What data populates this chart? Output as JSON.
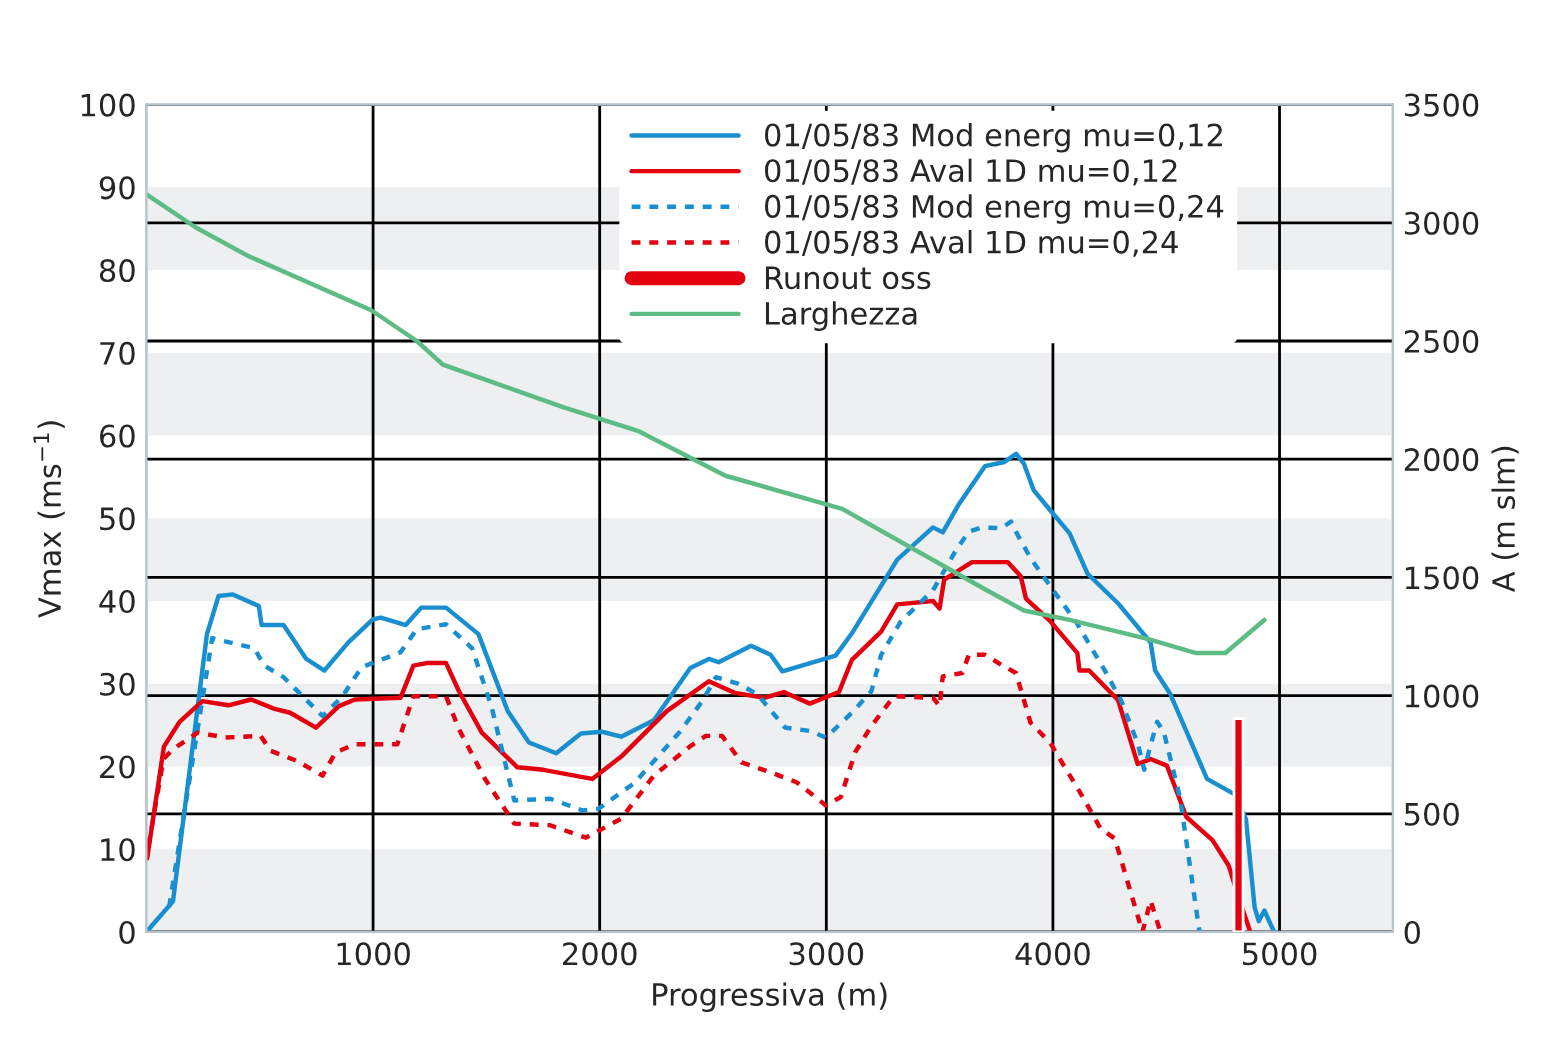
{
  "chart_data": {
    "type": "line",
    "xlabel": "Progressiva (m)",
    "ylabel": "Vmax (ms$^{−1}$)",
    "y2label": "A (m slm)",
    "xlim": [
      0,
      5500
    ],
    "xticks": [
      1000,
      2000,
      3000,
      4000,
      5000
    ],
    "ylim": [
      0,
      100
    ],
    "yticks": [
      0,
      10,
      20,
      30,
      40,
      50,
      60,
      70,
      80,
      90,
      100
    ],
    "y2lim": [
      0,
      3500
    ],
    "y2ticks": [
      0,
      500,
      1000,
      1500,
      2000,
      2500,
      3000,
      3500
    ],
    "grid": true,
    "legend": "top right",
    "bands": [
      {
        "axis": "y",
        "from": 0,
        "to": 10,
        "color": "#eeeff1"
      },
      {
        "axis": "y",
        "from": 20,
        "to": 30,
        "color": "#eeeff1"
      },
      {
        "axis": "y",
        "from": 40,
        "to": 50,
        "color": "#eeeff1"
      },
      {
        "axis": "y",
        "from": 60,
        "to": 70,
        "color": "#eeeff1"
      },
      {
        "axis": "y",
        "from": 80,
        "to": 90,
        "color": "#eeeff1"
      }
    ],
    "series": [
      {
        "name": "01/05/83 Mod energ mu=0,12",
        "color": "#1a8fd0",
        "line_style": "solid",
        "x": [
          0,
          117,
          267,
          318,
          381,
          496,
          508,
          605,
          705,
          785,
          891,
          1000,
          1034,
          1144,
          1212,
          1322,
          1465,
          1594,
          1688,
          1808,
          1917,
          2010,
          2095,
          2239,
          2400,
          2482,
          2525,
          2668,
          2754,
          2806,
          3041,
          3113,
          3313,
          3471,
          3514,
          3585,
          3700,
          3786,
          3837,
          3872,
          3915,
          3987,
          4073,
          4153,
          4288,
          4431,
          4451,
          4517,
          4680,
          4804,
          4852,
          4890,
          4908,
          4933,
          4976
        ],
        "values": [
          0,
          3.7,
          36,
          40.6,
          40.8,
          39.4,
          37.1,
          37.1,
          33,
          31.6,
          35,
          37.8,
          38,
          37.1,
          39.2,
          39.2,
          36,
          26.7,
          22.9,
          21.6,
          24,
          24.2,
          23.6,
          25.6,
          31.9,
          33,
          32.6,
          34.6,
          33.5,
          31.5,
          33.4,
          36.1,
          45,
          48.9,
          48.3,
          51.7,
          56.3,
          56.8,
          57.8,
          56.6,
          53.4,
          51,
          48.2,
          43.3,
          39.7,
          35,
          31.6,
          28.8,
          18.5,
          16.6,
          13.6,
          3,
          1.3,
          2.6,
          0
        ]
      },
      {
        "name": "01/05/83 Aval 1D mu=0,12",
        "color": "#e3000f",
        "line_style": "solid",
        "x": [
          3,
          77,
          146,
          247,
          361,
          462,
          562,
          634,
          748,
          849,
          920,
          1121,
          1178,
          1236,
          1322,
          1379,
          1480,
          1637,
          1752,
          1967,
          2095,
          2296,
          2482,
          2596,
          2726,
          2812,
          2927,
          3056,
          3113,
          3242,
          3313,
          3471,
          3500,
          3520,
          3643,
          3801,
          3858,
          3881,
          3987,
          4108,
          4117,
          4160,
          4288,
          4374,
          4431,
          4503,
          4589,
          4704,
          4776,
          4819,
          4871
        ],
        "values": [
          8.9,
          22.4,
          25.4,
          27.9,
          27.4,
          28.1,
          27,
          26.5,
          24.7,
          27.3,
          28.1,
          28.3,
          32.2,
          32.5,
          32.5,
          29.1,
          24.1,
          19.9,
          19.6,
          18.5,
          21.2,
          26.7,
          30.3,
          28.9,
          28.3,
          29,
          27.6,
          29,
          32.9,
          36.3,
          39.6,
          40,
          39.1,
          42.6,
          44.7,
          44.7,
          43,
          40.3,
          37.6,
          33.7,
          31.6,
          31.6,
          28,
          20.3,
          20.9,
          20.1,
          13.9,
          11.1,
          8,
          4.2,
          0
        ]
      },
      {
        "name": "01/05/83 Mod energ mu=0,24",
        "color": "#1a8fd0",
        "line_style": "dotted",
        "x": [
          100,
          290,
          476,
          519,
          605,
          777,
          863,
          949,
          1121,
          1193,
          1322,
          1437,
          1523,
          1623,
          1781,
          1924,
          1995,
          2153,
          2354,
          2455,
          2513,
          2613,
          2697,
          2818,
          2927,
          2998,
          3113,
          3199,
          3242,
          3328,
          3471,
          3571,
          3629,
          3686,
          3772,
          3815,
          3844,
          3901,
          4001,
          4102,
          4231,
          4302,
          4374,
          4403,
          4431,
          4460,
          4489,
          4561,
          4647
        ],
        "values": [
          3,
          35.5,
          34.3,
          32.2,
          30.8,
          26.1,
          28.4,
          32,
          33.8,
          36.6,
          37.2,
          34.3,
          27.2,
          15.9,
          16.1,
          14.7,
          14.9,
          18,
          24.2,
          28,
          30.8,
          30,
          28.7,
          24.7,
          24.3,
          23.5,
          26.5,
          29.1,
          33.5,
          37.5,
          41.3,
          46.1,
          48.4,
          48.9,
          48.8,
          49.6,
          48,
          45.2,
          41.3,
          37.5,
          31.5,
          27.9,
          22.8,
          19.6,
          22.6,
          25.4,
          24.2,
          16.2,
          0
        ]
      },
      {
        "name": "01/05/83 Aval 1D mu=0,24",
        "color": "#e3000f",
        "line_style": "dotted",
        "x": [
          9,
          75,
          117,
          226,
          347,
          504,
          548,
          662,
          777,
          835,
          920,
          1107,
          1178,
          1322,
          1379,
          1494,
          1623,
          1781,
          1939,
          2095,
          2239,
          2397,
          2468,
          2540,
          2626,
          2754,
          2869,
          2998,
          3064,
          3127,
          3199,
          3299,
          3471,
          3500,
          3514,
          3600,
          3629,
          3700,
          3772,
          3837,
          3901,
          3987,
          4130,
          4210,
          4273,
          4395,
          4431,
          4474
        ],
        "values": [
          10.4,
          20.9,
          22.1,
          24.1,
          23.5,
          23.7,
          21.9,
          20.7,
          18.9,
          21.7,
          22.7,
          22.7,
          28.5,
          28.5,
          24.5,
          18.5,
          13.1,
          12.9,
          11.4,
          13.7,
          18.9,
          22.4,
          23.7,
          23.7,
          20.5,
          19.3,
          18.1,
          15.3,
          16.3,
          21.7,
          24.9,
          28.5,
          28.3,
          27.3,
          30.9,
          31.3,
          33.5,
          33.5,
          32.3,
          31.3,
          25.3,
          22.9,
          16.4,
          12.5,
          11.3,
          0,
          3.8,
          0
        ]
      },
      {
        "name": "Runout oss",
        "type": "bar",
        "color": "#e3000f",
        "x": [
          4819
        ],
        "values": [
          25.8
        ]
      },
      {
        "name": "Larghezza",
        "color": "#5dbb84",
        "line_style": "solid",
        "axis": "y2",
        "x": [
          0,
          218,
          448,
          992,
          1193,
          1308,
          1838,
          2168,
          2555,
          3070,
          3700,
          3872,
          4073,
          4417,
          4632,
          4761,
          4933
        ],
        "values": [
          3120,
          2980,
          2860,
          2630,
          2500,
          2400,
          2220,
          2120,
          1930,
          1790,
          1450,
          1360,
          1320,
          1240,
          1180,
          1180,
          1320
        ]
      }
    ]
  }
}
